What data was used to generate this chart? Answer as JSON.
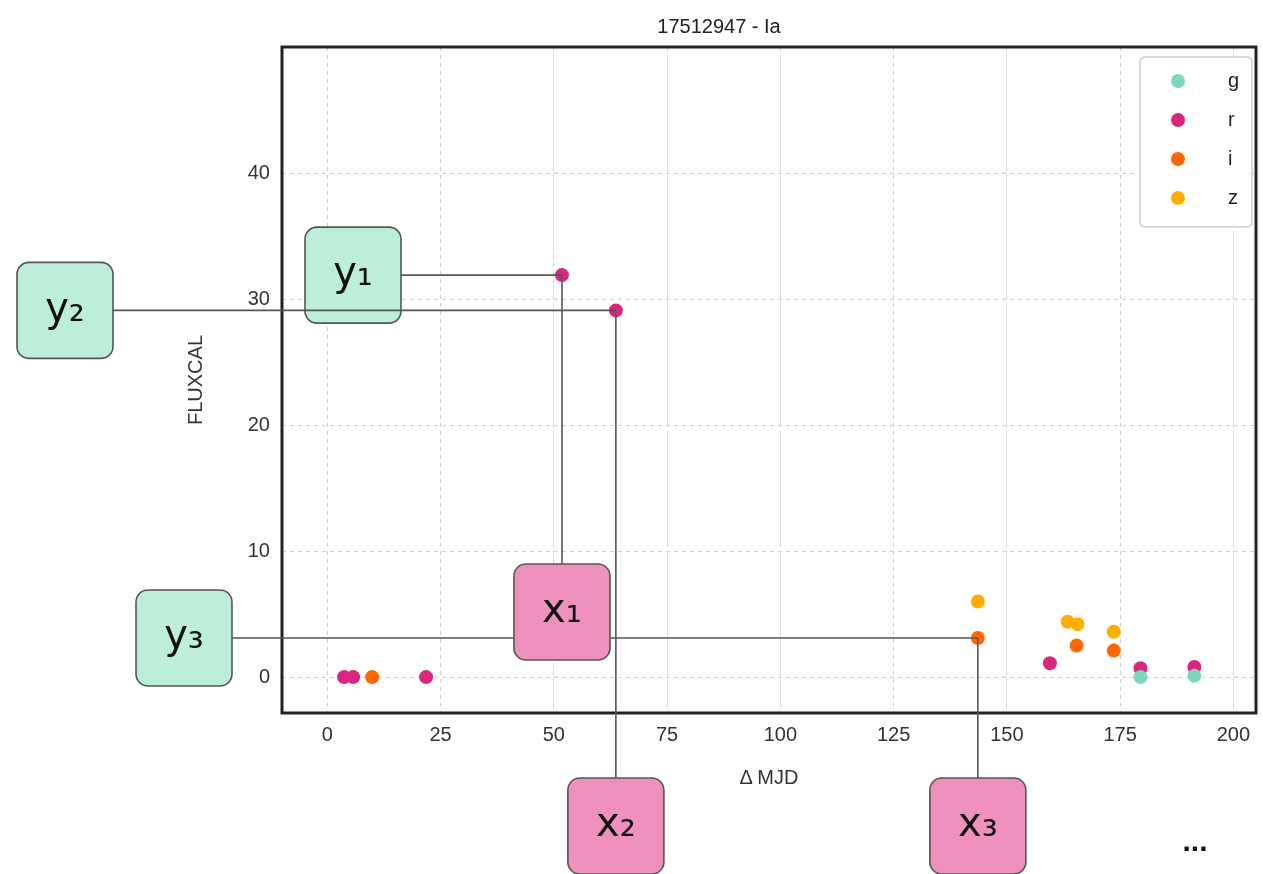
{
  "chart_data": {
    "type": "scatter",
    "title": "17512947 - Ia",
    "xlabel": "Δ MJD",
    "ylabel": "FLUXCAL",
    "xlim": [
      -10,
      205
    ],
    "ylim": [
      -2.85,
      50
    ],
    "xticks": [
      0,
      25,
      50,
      75,
      100,
      125,
      150,
      175,
      200
    ],
    "yticks": [
      0,
      10,
      20,
      30,
      40
    ],
    "grid": true,
    "legend": "top right",
    "marker": "circle",
    "series": [
      {
        "name": "g",
        "color": "#7dd9b5",
        "x": [
          179.5,
          191.4
        ],
        "values": [
          0,
          0.1
        ]
      },
      {
        "name": "r",
        "color": "#d9267f",
        "x": [
          3.7,
          5.7,
          21.8,
          51.8,
          63.7,
          159.5,
          179.5,
          191.4
        ],
        "values": [
          0,
          0,
          0,
          31.9,
          29.1,
          1.1,
          0.7,
          0.8
        ]
      },
      {
        "name": "i",
        "color": "#ff6600",
        "x": [
          9.9,
          143.6,
          165.4,
          173.6
        ],
        "values": [
          0,
          3.1,
          2.5,
          2.1
        ]
      },
      {
        "name": "z",
        "color": "#ffae00",
        "x": [
          143.6,
          163.4,
          165.6,
          173.6
        ],
        "values": [
          6.0,
          4.4,
          4.2,
          3.6
        ]
      }
    ],
    "annotations": [
      {
        "text": "y₁",
        "x": 51.8,
        "y": 31.9
      },
      {
        "text": "y₂",
        "x": 63.7,
        "y": 29.1
      },
      {
        "text": "y₃",
        "x": 143.6,
        "y": 3.1
      },
      {
        "text": "x₁",
        "x": 51.8,
        "y": 31.9
      },
      {
        "text": "x₂",
        "x": 63.7,
        "y": 29.1
      },
      {
        "text": "x₃",
        "x": 143.6,
        "y": 3.1
      },
      "..."
    ]
  }
}
